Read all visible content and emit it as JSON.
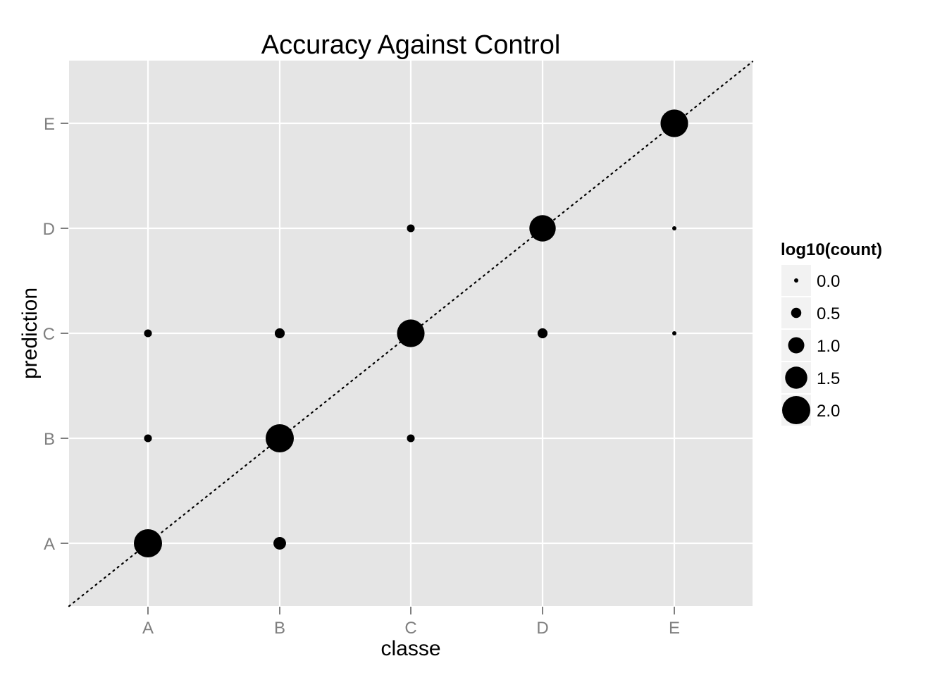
{
  "chart_data": {
    "type": "scatter",
    "title": "Accuracy Against Control",
    "xlabel": "classe",
    "ylabel": "prediction",
    "x_categories": [
      "A",
      "B",
      "C",
      "D",
      "E"
    ],
    "y_categories": [
      "A",
      "B",
      "C",
      "D",
      "E"
    ],
    "reference_line": {
      "style": "dotted",
      "slope": 1,
      "intercept": 0
    },
    "grid": true,
    "size_variable": "log10(count)",
    "points": [
      {
        "x": "A",
        "y": "A",
        "log10_count": 2.0
      },
      {
        "x": "B",
        "y": "A",
        "log10_count": 0.7
      },
      {
        "x": "A",
        "y": "B",
        "log10_count": 0.3
      },
      {
        "x": "B",
        "y": "B",
        "log10_count": 2.0
      },
      {
        "x": "C",
        "y": "B",
        "log10_count": 0.3
      },
      {
        "x": "A",
        "y": "C",
        "log10_count": 0.3
      },
      {
        "x": "B",
        "y": "C",
        "log10_count": 0.48
      },
      {
        "x": "C",
        "y": "C",
        "log10_count": 1.95
      },
      {
        "x": "D",
        "y": "C",
        "log10_count": 0.48
      },
      {
        "x": "E",
        "y": "C",
        "log10_count": 0.0
      },
      {
        "x": "C",
        "y": "D",
        "log10_count": 0.3
      },
      {
        "x": "D",
        "y": "D",
        "log10_count": 1.85
      },
      {
        "x": "E",
        "y": "D",
        "log10_count": 0.0
      },
      {
        "x": "E",
        "y": "E",
        "log10_count": 1.95
      }
    ],
    "legend": {
      "title": "log10(count)",
      "position": "right",
      "values": [
        0.0,
        0.5,
        1.0,
        1.5,
        2.0
      ],
      "labels": [
        "0.0",
        "0.5",
        "1.0",
        "1.5",
        "2.0"
      ]
    },
    "colors": {
      "panel": "#e5e5e5",
      "grid": "#ffffff",
      "point": "#000000",
      "tick_label": "#7f7f7f",
      "legend_key": "#f2f2f2"
    }
  }
}
